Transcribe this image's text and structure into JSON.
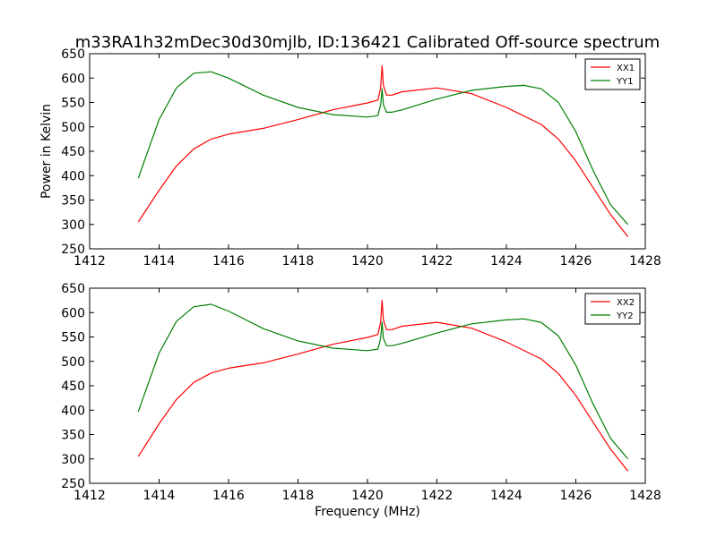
{
  "title": "m33RA1h32mDec30d30mjlb, ID:136421 Calibrated Off-source spectrum",
  "chart_data": [
    {
      "type": "line",
      "ylabel": "Power in Kelvin",
      "xlabel": "",
      "xlim": [
        1412,
        1428
      ],
      "ylim": [
        250,
        650
      ],
      "x_ticks": [
        "1412",
        "1414",
        "1416",
        "1418",
        "1420",
        "1422",
        "1424",
        "1426",
        "1428"
      ],
      "y_ticks": [
        "250",
        "300",
        "350",
        "400",
        "450",
        "500",
        "550",
        "600",
        "650"
      ],
      "legend_position": "top-right",
      "series": [
        {
          "name": "XX1",
          "color": "#ff0000",
          "x": [
            1413.4,
            1414.0,
            1414.5,
            1415.0,
            1415.5,
            1416.0,
            1417.0,
            1418.0,
            1419.0,
            1420.0,
            1420.3,
            1420.38,
            1420.42,
            1420.46,
            1420.55,
            1420.7,
            1421.0,
            1422.0,
            1423.0,
            1424.0,
            1425.0,
            1425.5,
            1426.0,
            1426.5,
            1427.0,
            1427.5
          ],
          "y": [
            305,
            370,
            420,
            455,
            475,
            485,
            497,
            515,
            535,
            549,
            555,
            580,
            625,
            585,
            565,
            565,
            572,
            580,
            568,
            540,
            505,
            475,
            430,
            375,
            320,
            275
          ]
        },
        {
          "name": "YY1",
          "color": "#008000",
          "x": [
            1413.4,
            1414.0,
            1414.5,
            1415.0,
            1415.5,
            1416.0,
            1417.0,
            1418.0,
            1419.0,
            1420.0,
            1420.3,
            1420.38,
            1420.42,
            1420.46,
            1420.55,
            1420.7,
            1421.0,
            1422.0,
            1423.0,
            1424.0,
            1424.5,
            1425.0,
            1425.5,
            1426.0,
            1426.5,
            1427.0,
            1427.5
          ],
          "y": [
            395,
            515,
            580,
            610,
            613,
            600,
            565,
            540,
            525,
            520,
            523,
            545,
            578,
            545,
            530,
            530,
            535,
            557,
            575,
            583,
            585,
            578,
            550,
            490,
            410,
            340,
            300
          ]
        }
      ]
    },
    {
      "type": "line",
      "ylabel": "",
      "xlabel": "Frequency (MHz)",
      "xlim": [
        1412,
        1428
      ],
      "ylim": [
        250,
        650
      ],
      "x_ticks": [
        "1412",
        "1414",
        "1416",
        "1418",
        "1420",
        "1422",
        "1424",
        "1426",
        "1428"
      ],
      "y_ticks": [
        "250",
        "300",
        "350",
        "400",
        "450",
        "500",
        "550",
        "600",
        "650"
      ],
      "legend_position": "top-right",
      "series": [
        {
          "name": "XX2",
          "color": "#ff0000",
          "x": [
            1413.4,
            1414.0,
            1414.5,
            1415.0,
            1415.5,
            1416.0,
            1417.0,
            1418.0,
            1419.0,
            1420.0,
            1420.3,
            1420.38,
            1420.42,
            1420.46,
            1420.55,
            1420.7,
            1421.0,
            1422.0,
            1423.0,
            1424.0,
            1425.0,
            1425.5,
            1426.0,
            1426.5,
            1427.0,
            1427.5
          ],
          "y": [
            305,
            372,
            422,
            457,
            476,
            486,
            497,
            515,
            535,
            549,
            555,
            580,
            625,
            585,
            565,
            565,
            572,
            580,
            568,
            540,
            505,
            475,
            430,
            375,
            320,
            275
          ]
        },
        {
          "name": "YY2",
          "color": "#008000",
          "x": [
            1413.4,
            1414.0,
            1414.5,
            1415.0,
            1415.5,
            1416.0,
            1417.0,
            1418.0,
            1419.0,
            1420.0,
            1420.3,
            1420.38,
            1420.42,
            1420.46,
            1420.55,
            1420.7,
            1421.0,
            1422.0,
            1423.0,
            1424.0,
            1424.5,
            1425.0,
            1425.5,
            1426.0,
            1426.5,
            1427.0,
            1427.5
          ],
          "y": [
            397,
            517,
            582,
            612,
            617,
            603,
            567,
            542,
            527,
            522,
            525,
            547,
            580,
            547,
            532,
            532,
            537,
            558,
            577,
            585,
            587,
            580,
            552,
            492,
            412,
            342,
            300
          ]
        }
      ]
    }
  ]
}
